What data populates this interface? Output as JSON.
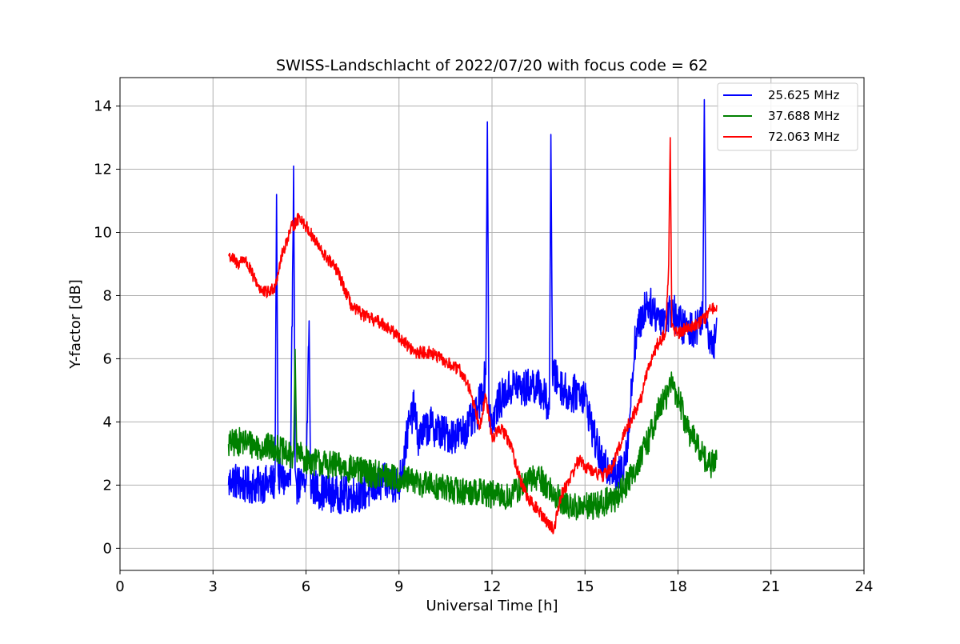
{
  "chart_data": {
    "type": "line",
    "title": "SWISS-Landschlacht of 2022/07/20 with focus code = 62",
    "xlabel": "Universal Time [h]",
    "ylabel": "Y-factor [dB]",
    "xlim": [
      0,
      24
    ],
    "ylim": [
      -0.7,
      14.9
    ],
    "xticks": [
      0,
      3,
      6,
      9,
      12,
      15,
      18,
      21,
      24
    ],
    "yticks": [
      0,
      2,
      4,
      6,
      8,
      10,
      12,
      14
    ],
    "grid": true,
    "legend_position": "top-right",
    "series": [
      {
        "name": "25.625 MHz",
        "color": "#0000ff",
        "noise": 0.6,
        "x": [
          3.5,
          3.6,
          4.0,
          4.5,
          5.0,
          5.05,
          5.1,
          5.5,
          5.6,
          5.65,
          5.7,
          6.0,
          6.1,
          6.15,
          6.5,
          7.0,
          7.5,
          8.0,
          8.5,
          9.0,
          9.3,
          9.5,
          9.6,
          10.0,
          10.5,
          11.0,
          11.5,
          11.8,
          11.85,
          11.9,
          12.0,
          12.2,
          12.5,
          12.8,
          13.0,
          13.3,
          13.6,
          13.85,
          13.9,
          13.95,
          14.2,
          14.5,
          14.8,
          15.0,
          15.3,
          15.6,
          15.9,
          16.0,
          16.2,
          16.4,
          16.6,
          16.8,
          17.0,
          17.3,
          17.6,
          17.8,
          18.0,
          18.3,
          18.6,
          18.8,
          18.85,
          18.9,
          19.0,
          19.2,
          19.25
        ],
        "y": [
          2.0,
          2.2,
          2.0,
          2.0,
          2.1,
          11.2,
          2.3,
          2.0,
          12.1,
          2.5,
          2.0,
          2.0,
          7.2,
          2.0,
          1.8,
          1.7,
          1.7,
          1.8,
          2.1,
          2.0,
          3.8,
          4.5,
          3.5,
          3.9,
          3.6,
          3.6,
          4.2,
          5.5,
          13.5,
          4.5,
          4.0,
          4.6,
          5.0,
          5.2,
          5.0,
          5.2,
          5.0,
          4.4,
          13.1,
          5.5,
          5.2,
          4.8,
          5.0,
          4.8,
          3.5,
          2.5,
          2.6,
          2.2,
          2.5,
          3.5,
          6.5,
          7.2,
          7.8,
          7.4,
          7.3,
          7.6,
          7.2,
          6.9,
          7.0,
          7.5,
          14.2,
          7.0,
          6.8,
          6.5,
          7.3
        ]
      },
      {
        "name": "37.688 MHz",
        "color": "#008000",
        "noise": 0.45,
        "x": [
          3.5,
          4.0,
          4.5,
          5.0,
          5.5,
          5.6,
          5.65,
          5.7,
          6.0,
          6.5,
          7.0,
          7.5,
          8.0,
          8.5,
          9.0,
          9.5,
          10.0,
          10.5,
          11.0,
          11.5,
          12.0,
          12.5,
          13.0,
          13.5,
          14.0,
          14.5,
          15.0,
          15.5,
          16.0,
          16.5,
          17.0,
          17.3,
          17.6,
          17.8,
          18.0,
          18.3,
          18.6,
          18.8,
          19.0,
          19.25
        ],
        "y": [
          3.3,
          3.4,
          3.2,
          3.2,
          2.9,
          3.0,
          6.3,
          3.0,
          2.8,
          2.7,
          2.6,
          2.5,
          2.4,
          2.3,
          2.2,
          2.1,
          2.0,
          1.9,
          1.8,
          1.8,
          1.7,
          1.6,
          2.0,
          2.3,
          1.7,
          1.3,
          1.3,
          1.4,
          1.6,
          2.3,
          3.3,
          4.2,
          4.8,
          5.2,
          4.8,
          3.8,
          3.3,
          3.0,
          2.6,
          2.8
        ]
      },
      {
        "name": "72.063 MHz",
        "color": "#ff0000",
        "noise": 0.2,
        "x": [
          3.5,
          3.8,
          4.0,
          4.3,
          4.6,
          4.8,
          5.0,
          5.2,
          5.5,
          5.8,
          6.0,
          6.5,
          7.0,
          7.5,
          8.0,
          8.5,
          9.0,
          9.5,
          10.0,
          10.5,
          11.0,
          11.3,
          11.6,
          11.8,
          12.0,
          12.3,
          12.6,
          12.9,
          13.2,
          13.5,
          13.8,
          14.0,
          14.2,
          14.5,
          14.8,
          15.0,
          15.3,
          15.6,
          15.9,
          16.2,
          16.5,
          16.8,
          17.0,
          17.3,
          17.6,
          17.7,
          17.75,
          17.8,
          18.0,
          18.3,
          18.6,
          18.9,
          19.0,
          19.25
        ],
        "y": [
          9.3,
          9.0,
          9.2,
          8.6,
          8.1,
          8.1,
          8.3,
          9.2,
          10.1,
          10.5,
          10.2,
          9.4,
          8.8,
          7.6,
          7.3,
          7.1,
          6.7,
          6.2,
          6.2,
          5.9,
          5.6,
          5.0,
          3.9,
          4.8,
          3.5,
          3.8,
          3.3,
          2.2,
          1.5,
          1.2,
          0.8,
          0.6,
          1.6,
          2.2,
          2.8,
          2.6,
          2.4,
          2.3,
          2.6,
          3.5,
          4.1,
          4.7,
          5.6,
          6.4,
          6.8,
          9.0,
          13.0,
          7.0,
          6.8,
          7.0,
          7.1,
          7.3,
          7.5,
          7.7
        ]
      }
    ]
  }
}
